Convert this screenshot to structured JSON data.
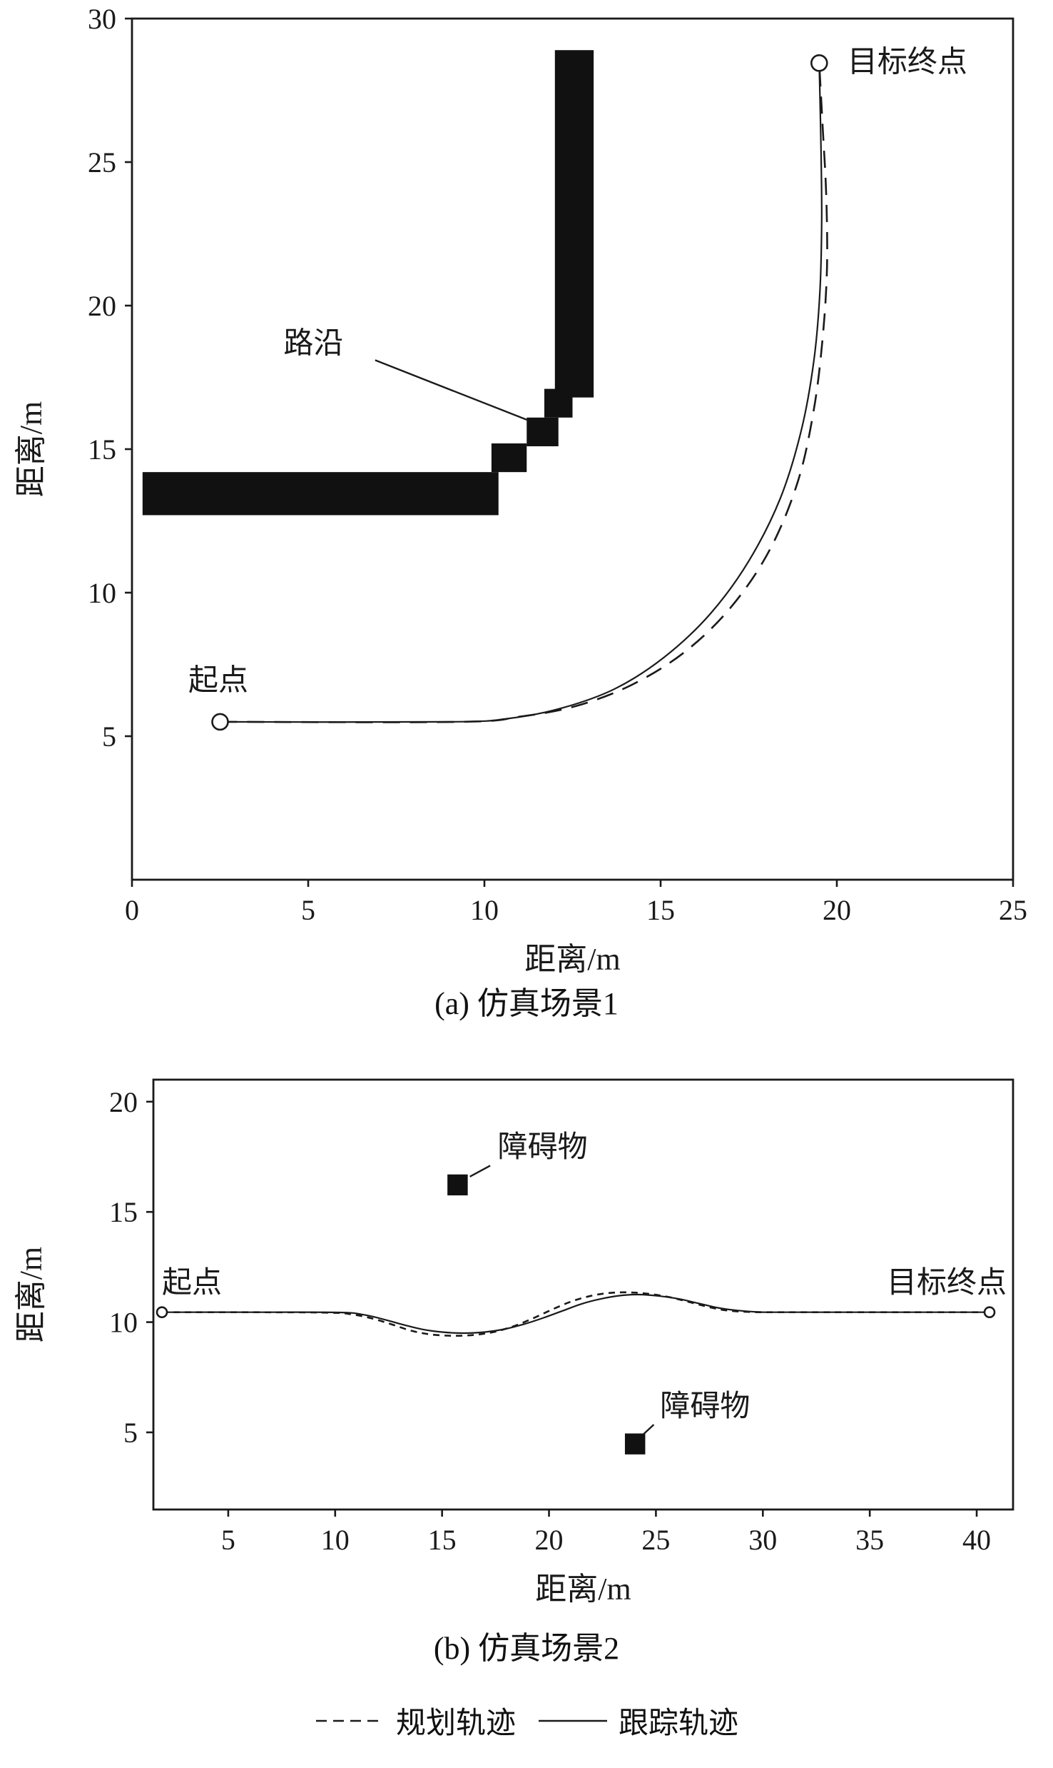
{
  "colors": {
    "ink": "#1a1a1a",
    "obstacle": "#111111",
    "background": "#ffffff"
  },
  "legend": {
    "items": [
      {
        "label": "规划轨迹",
        "style": "dashed"
      },
      {
        "label": "跟踪轨迹",
        "style": "solid"
      }
    ]
  },
  "chart_data": [
    {
      "type": "line",
      "caption": "(a) 仿真场景1",
      "xlabel": "距离/m",
      "ylabel": "距离/m",
      "xlim": [
        0,
        25
      ],
      "ylim": [
        0,
        30
      ],
      "xticks": [
        0,
        5,
        10,
        15,
        20,
        25
      ],
      "yticks": [
        5,
        10,
        15,
        20,
        25,
        30
      ],
      "grid": false,
      "legend_position": "none",
      "obstacles": [
        {
          "name": "curb-horizontal-bar",
          "x": 0.3,
          "y": 12.7,
          "w": 10.1,
          "h": 1.5
        },
        {
          "name": "curb-step-1",
          "x": 10.2,
          "y": 14.2,
          "w": 1.0,
          "h": 1.0
        },
        {
          "name": "curb-step-2",
          "x": 11.2,
          "y": 15.1,
          "w": 0.9,
          "h": 1.0
        },
        {
          "name": "curb-step-3",
          "x": 11.7,
          "y": 16.1,
          "w": 0.8,
          "h": 1.0
        },
        {
          "name": "curb-vertical-bar",
          "x": 12.0,
          "y": 16.8,
          "w": 1.1,
          "h": 12.1
        }
      ],
      "markers": [
        {
          "name": "start-point",
          "x": 2.5,
          "y": 5.5,
          "r": 11
        },
        {
          "name": "goal-point",
          "x": 19.5,
          "y": 28.45,
          "r": 11
        }
      ],
      "series": [
        {
          "name": "规划轨迹",
          "style": "dashed",
          "points": [
            [
              2.5,
              5.5
            ],
            [
              9.3,
              5.5
            ],
            [
              11.0,
              5.68
            ],
            [
              12.6,
              6.05
            ],
            [
              14.2,
              6.8
            ],
            [
              15.7,
              7.95
            ],
            [
              17.0,
              9.5
            ],
            [
              18.1,
              11.5
            ],
            [
              18.9,
              13.9
            ],
            [
              19.35,
              16.4
            ],
            [
              19.6,
              18.9
            ],
            [
              19.72,
              21.3
            ],
            [
              19.7,
              23.8
            ],
            [
              19.6,
              26.2
            ],
            [
              19.5,
              28.45
            ]
          ]
        },
        {
          "name": "跟踪轨迹",
          "style": "solid",
          "points": [
            [
              2.5,
              5.5
            ],
            [
              9.0,
              5.5
            ],
            [
              10.7,
              5.62
            ],
            [
              12.2,
              5.98
            ],
            [
              13.7,
              6.65
            ],
            [
              15.1,
              7.75
            ],
            [
              16.4,
              9.25
            ],
            [
              17.5,
              11.1
            ],
            [
              18.4,
              13.3
            ],
            [
              19.0,
              15.7
            ],
            [
              19.35,
              18.1
            ],
            [
              19.52,
              20.5
            ],
            [
              19.57,
              23.0
            ],
            [
              19.55,
              25.5
            ],
            [
              19.5,
              28.45
            ]
          ]
        }
      ],
      "annotations": [
        {
          "name": "start-label",
          "text": "起点",
          "x": 1.6,
          "y": 6.6,
          "anchor": "start"
        },
        {
          "name": "goal-label",
          "text": "目标终点",
          "x": 20.3,
          "y": 28.15,
          "anchor": "start"
        },
        {
          "name": "curb-label",
          "text": "路沿",
          "x": 4.3,
          "y": 18.35,
          "anchor": "start",
          "leader": [
            6.9,
            18.1,
            11.25,
            16.0
          ]
        }
      ]
    },
    {
      "type": "line",
      "caption": "(b) 仿真场景2",
      "xlabel": "距离/m",
      "ylabel": "距离/m",
      "xlim": [
        1.5,
        41.7
      ],
      "ylim": [
        1.5,
        21
      ],
      "xticks": [
        5,
        10,
        15,
        20,
        25,
        30,
        35,
        40
      ],
      "yticks": [
        5,
        10,
        15,
        20
      ],
      "grid": false,
      "legend_position": "none",
      "obstacles": [
        {
          "name": "obstacle-upper",
          "x": 15.25,
          "y": 15.75,
          "w": 0.95,
          "h": 0.95
        },
        {
          "name": "obstacle-lower",
          "x": 23.55,
          "y": 4.0,
          "w": 0.95,
          "h": 0.95
        }
      ],
      "markers": [
        {
          "name": "start-point",
          "x": 1.9,
          "y": 10.45,
          "r": 7
        },
        {
          "name": "goal-point",
          "x": 40.6,
          "y": 10.45,
          "r": 7
        }
      ],
      "series": [
        {
          "name": "规划轨迹",
          "style": "dashed",
          "points": [
            [
              1.9,
              10.45
            ],
            [
              6,
              10.45
            ],
            [
              9.7,
              10.43
            ],
            [
              10.8,
              10.35
            ],
            [
              11.8,
              10.15
            ],
            [
              12.7,
              9.88
            ],
            [
              13.6,
              9.6
            ],
            [
              14.5,
              9.44
            ],
            [
              15.5,
              9.38
            ],
            [
              16.5,
              9.42
            ],
            [
              17.4,
              9.55
            ],
            [
              18.3,
              9.8
            ],
            [
              19.2,
              10.15
            ],
            [
              20.1,
              10.55
            ],
            [
              21.0,
              10.92
            ],
            [
              21.9,
              11.18
            ],
            [
              22.8,
              11.32
            ],
            [
              23.7,
              11.35
            ],
            [
              24.7,
              11.28
            ],
            [
              25.7,
              11.12
            ],
            [
              26.6,
              10.9
            ],
            [
              27.5,
              10.68
            ],
            [
              28.4,
              10.52
            ],
            [
              29.5,
              10.46
            ],
            [
              31.0,
              10.45
            ],
            [
              40.6,
              10.45
            ]
          ]
        },
        {
          "name": "跟踪轨迹",
          "style": "solid",
          "points": [
            [
              1.9,
              10.45
            ],
            [
              6,
              10.45
            ],
            [
              10.2,
              10.44
            ],
            [
              11.3,
              10.34
            ],
            [
              12.3,
              10.12
            ],
            [
              13.2,
              9.88
            ],
            [
              14.1,
              9.67
            ],
            [
              15.0,
              9.55
            ],
            [
              16.0,
              9.5
            ],
            [
              17.0,
              9.55
            ],
            [
              17.9,
              9.68
            ],
            [
              18.8,
              9.9
            ],
            [
              19.7,
              10.18
            ],
            [
              20.6,
              10.5
            ],
            [
              21.5,
              10.82
            ],
            [
              22.4,
              11.05
            ],
            [
              23.3,
              11.2
            ],
            [
              24.2,
              11.25
            ],
            [
              25.2,
              11.18
            ],
            [
              26.1,
              11.05
            ],
            [
              27.0,
              10.85
            ],
            [
              27.9,
              10.65
            ],
            [
              28.8,
              10.53
            ],
            [
              29.8,
              10.46
            ],
            [
              31.2,
              10.45
            ],
            [
              40.6,
              10.45
            ]
          ]
        }
      ],
      "annotations": [
        {
          "name": "start-label",
          "text": "起点",
          "x": 1.9,
          "y": 11.35,
          "anchor": "start"
        },
        {
          "name": "goal-label",
          "text": "目标终点",
          "x": 41.4,
          "y": 11.35,
          "anchor": "end"
        },
        {
          "name": "obstacle-upper-label",
          "text": "障碍物",
          "x": 17.6,
          "y": 17.5,
          "anchor": "start",
          "leader": [
            17.25,
            17.1,
            16.3,
            16.6
          ]
        },
        {
          "name": "obstacle-lower-label",
          "text": "障碍物",
          "x": 25.2,
          "y": 5.75,
          "anchor": "start",
          "leader": [
            24.9,
            5.35,
            24.4,
            4.9
          ]
        }
      ]
    }
  ]
}
